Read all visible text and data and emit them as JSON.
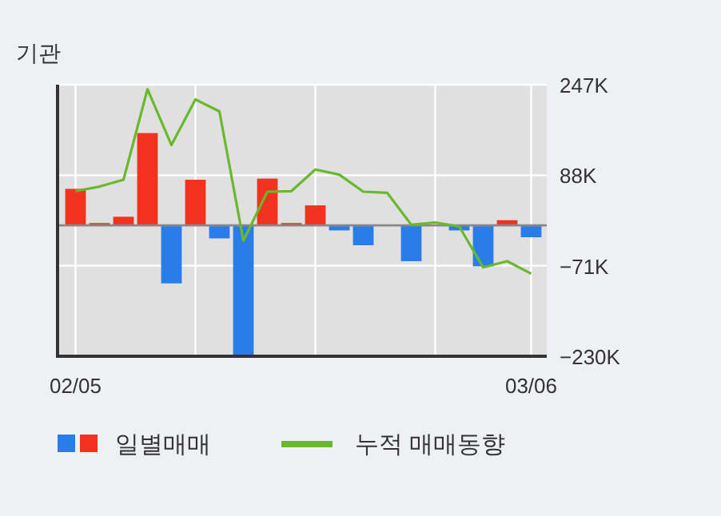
{
  "chart_data": {
    "type": "bar",
    "title": "기관",
    "categories": [
      "02/05",
      null,
      null,
      null,
      null,
      null,
      null,
      null,
      null,
      null,
      null,
      null,
      null,
      null,
      null,
      null,
      null,
      null,
      null,
      "03/06"
    ],
    "series": [
      {
        "name": "일별매매",
        "colors": [
          "#f0321e",
          "#f0321e",
          "#f0321e",
          "#f0321e",
          "#2a7de8",
          "#f0321e",
          "#2a7de8",
          "#2a7de8",
          "#f0321e",
          "#f0321e",
          "#f0321e",
          "#2a7de8",
          "#2a7de8",
          "#2a7de8",
          "#2a7de8",
          "#2a7de8",
          "#2a7de8",
          "#2a7de8",
          "#f0321e",
          "#2a7de8"
        ],
        "values": [
          64,
          4,
          15,
          162,
          -102,
          80,
          -23,
          -228,
          82,
          4,
          35,
          -9,
          -35,
          0,
          -63,
          0,
          -9,
          -72,
          9,
          -21
        ]
      },
      {
        "name": "누적 매매동향",
        "type": "line",
        "color": "#6ab82c",
        "values": [
          60,
          68,
          80,
          239,
          141,
          221,
          200,
          -27,
          59,
          60,
          98,
          89,
          59,
          57,
          1,
          5,
          -2,
          -74,
          -63,
          -85
        ]
      }
    ],
    "ylim": [
      -230,
      247
    ],
    "yticks": [
      {
        "value": 247,
        "label": "247K"
      },
      {
        "value": 88,
        "label": "88K"
      },
      {
        "value": -71,
        "label": "−71K"
      },
      {
        "value": -230,
        "label": "−230K"
      }
    ],
    "grid": true,
    "legend": "bottom"
  }
}
